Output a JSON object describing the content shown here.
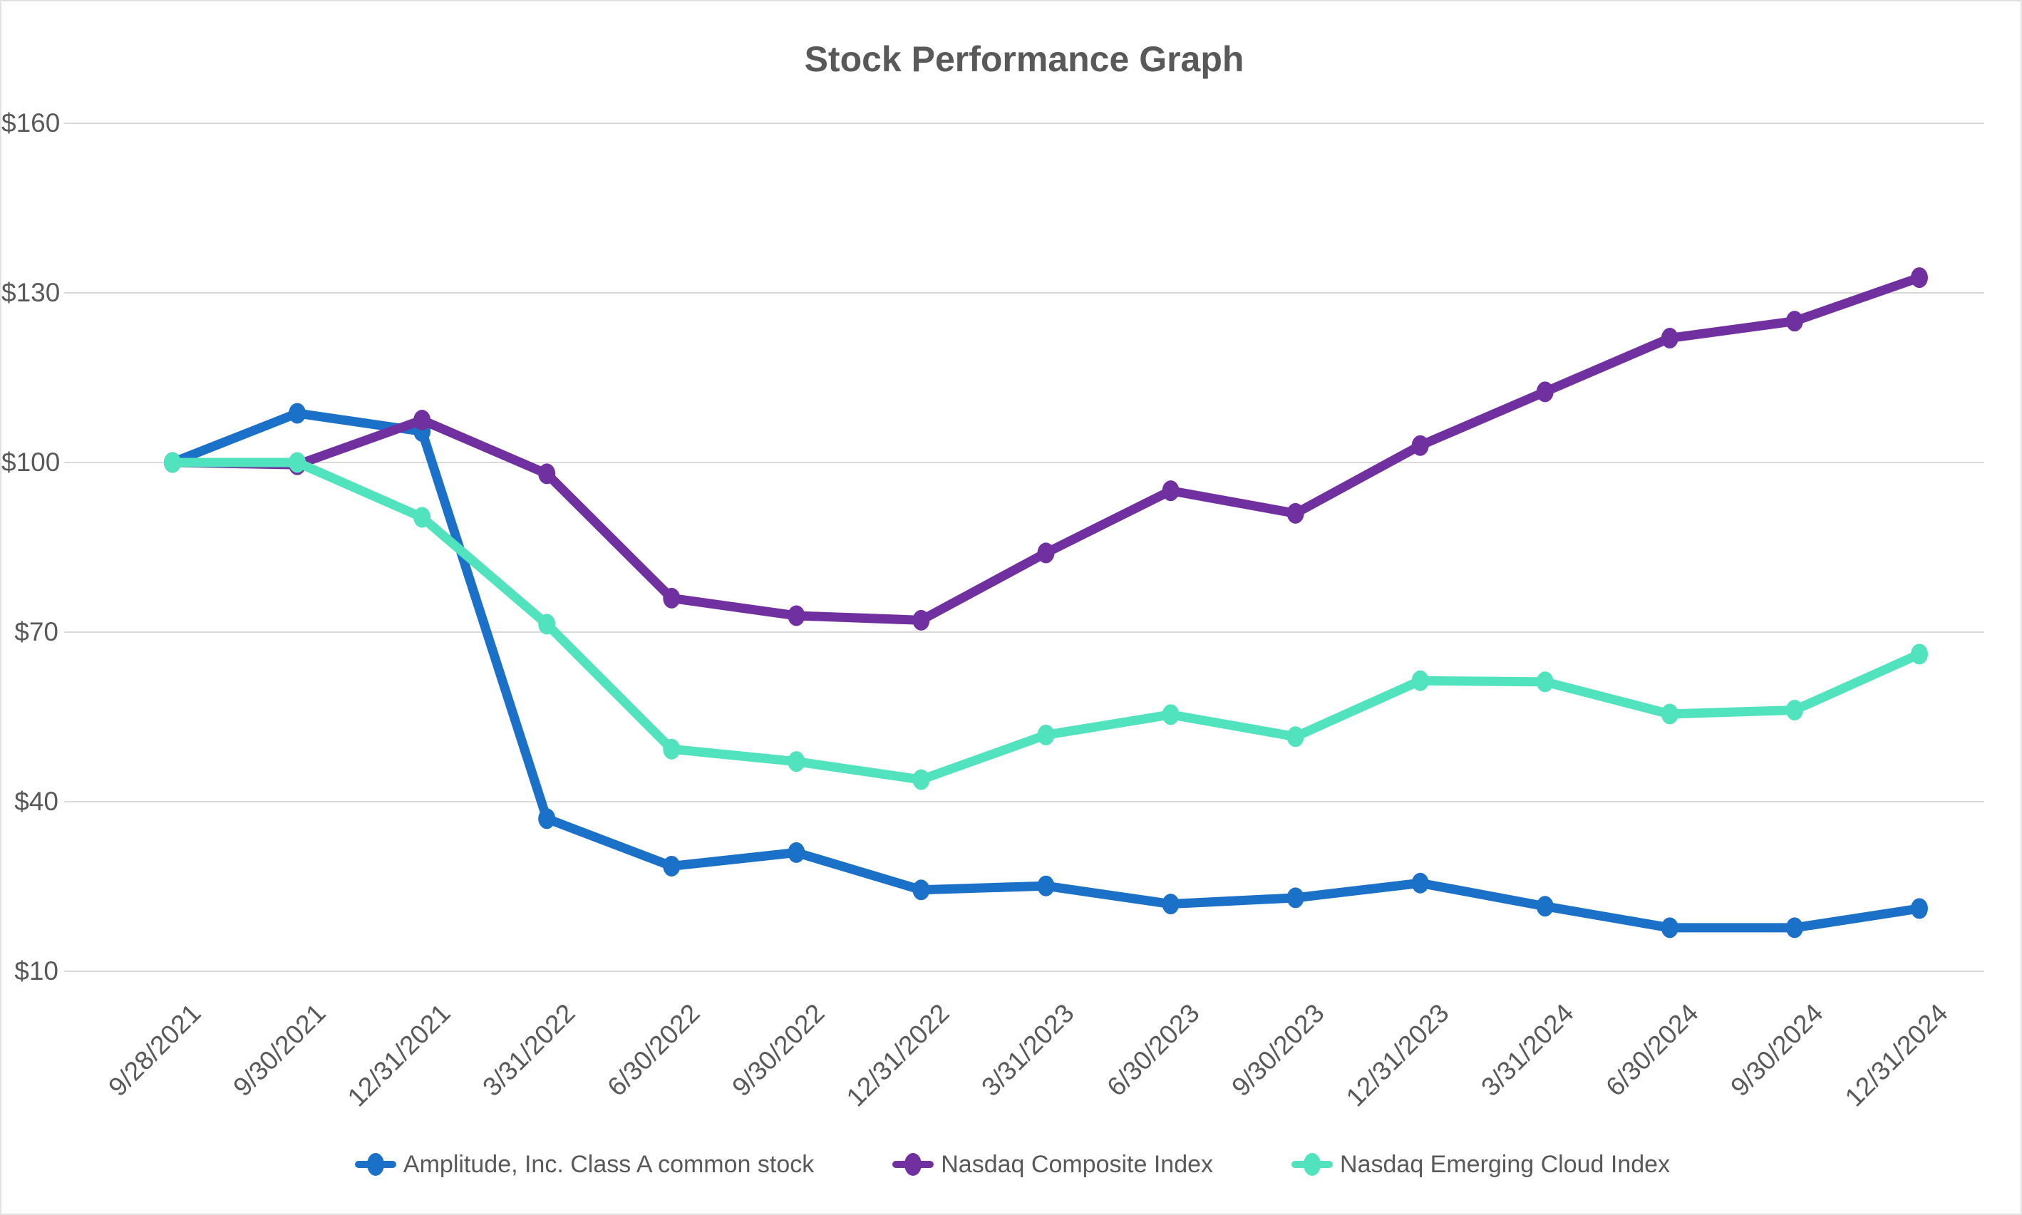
{
  "title": "Stock Performance Graph",
  "colors": {
    "amplitude": "#1B70C7",
    "nasdaq_composite": "#7030A0",
    "nasdaq_emerging_cloud": "#50E3BE",
    "gridline": "#D9D9D9",
    "text": "#595959",
    "background": "#FFFFFF",
    "border": "#E2E2E2"
  },
  "y_axis": {
    "tick_labels": [
      "$160",
      "$130",
      "$100",
      "$70",
      "$40",
      "$10"
    ],
    "tick_values": [
      160,
      130,
      100,
      70,
      40,
      10
    ]
  },
  "chart_data": {
    "type": "line",
    "title": "Stock Performance Graph",
    "categories": [
      "9/28/2021",
      "9/30/2021",
      "12/31/2021",
      "3/31/2022",
      "6/30/2022",
      "9/30/2022",
      "12/31/2022",
      "3/31/2023",
      "6/30/2023",
      "9/30/2023",
      "12/31/2023",
      "3/31/2024",
      "6/30/2024",
      "9/30/2024",
      "12/31/2024"
    ],
    "series": [
      {
        "name": "Amplitude, Inc. Class A common stock",
        "color": "#1B70C7",
        "values": [
          100,
          108.7,
          105.5,
          37.0,
          28.6,
          31.0,
          24.4,
          25.1,
          21.9,
          23.0,
          25.6,
          21.5,
          17.7,
          17.7,
          21.1
        ]
      },
      {
        "name": "Nasdaq Composite Index",
        "color": "#7030A0",
        "values": [
          100,
          99.6,
          107.5,
          98.0,
          76.0,
          72.9,
          72.1,
          84.0,
          95.0,
          91.0,
          103.0,
          112.5,
          122.0,
          125.0,
          132.7
        ]
      },
      {
        "name": "Nasdaq Emerging Cloud Index",
        "color": "#50E3BE",
        "values": [
          100,
          100,
          90.3,
          71.4,
          49.3,
          47.1,
          43.9,
          51.8,
          55.4,
          51.5,
          61.4,
          61.2,
          55.5,
          56.2,
          66.1
        ]
      }
    ],
    "ylim": [
      10,
      160
    ],
    "y_ticks": [
      160,
      130,
      100,
      70,
      40,
      10
    ],
    "xlabel": "",
    "ylabel": "",
    "grid": "horizontal",
    "legend_position": "bottom",
    "marker": "ellipse"
  }
}
